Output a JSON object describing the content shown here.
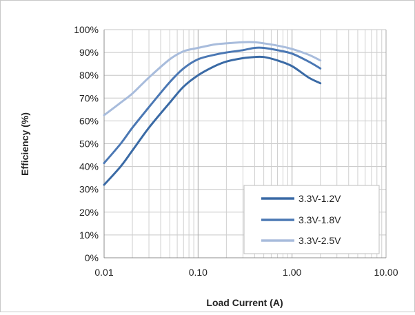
{
  "chart_data": {
    "type": "line",
    "xlabel": "Load Current (A)",
    "ylabel": "Efficiency (%)",
    "x_scale": "log",
    "xlim": [
      0.01,
      10
    ],
    "ylim": [
      0,
      100
    ],
    "x_ticks": [
      0.01,
      0.1,
      1,
      10
    ],
    "x_tick_labels": [
      "0.01",
      "0.10",
      "1.00",
      "10.00"
    ],
    "y_ticks": [
      0,
      10,
      20,
      30,
      40,
      50,
      60,
      70,
      80,
      90,
      100
    ],
    "y_tick_labels": [
      "0%",
      "10%",
      "20%",
      "30%",
      "40%",
      "50%",
      "60%",
      "70%",
      "80%",
      "90%",
      "100%"
    ],
    "grid": true,
    "legend_position": "bottom-right",
    "series": [
      {
        "name": "3.3V-1.2V",
        "color": "#3a6aa5",
        "x": [
          0.01,
          0.015,
          0.02,
          0.03,
          0.05,
          0.07,
          0.1,
          0.15,
          0.2,
          0.3,
          0.4,
          0.5,
          0.7,
          1,
          1.5,
          2
        ],
        "y": [
          32,
          40,
          47,
          57,
          68,
          75,
          80,
          84,
          86,
          87.5,
          88,
          88,
          86.5,
          84,
          79,
          76.5
        ]
      },
      {
        "name": "3.3V-1.8V",
        "color": "#4b78b4",
        "x": [
          0.01,
          0.015,
          0.02,
          0.03,
          0.05,
          0.07,
          0.1,
          0.15,
          0.2,
          0.3,
          0.4,
          0.5,
          0.7,
          1,
          1.5,
          2
        ],
        "y": [
          41.5,
          50,
          57,
          66,
          77,
          83,
          87,
          89,
          90,
          91,
          92,
          92,
          91,
          89.5,
          86,
          83
        ]
      },
      {
        "name": "3.3V-2.5V",
        "color": "#a8bcdc",
        "x": [
          0.01,
          0.015,
          0.02,
          0.03,
          0.05,
          0.07,
          0.1,
          0.15,
          0.2,
          0.3,
          0.4,
          0.5,
          0.7,
          1,
          1.5,
          2
        ],
        "y": [
          62.5,
          68,
          72,
          79,
          87,
          90.5,
          92,
          93.5,
          94,
          94.5,
          94.5,
          94,
          93,
          91.5,
          89,
          86.5
        ]
      }
    ]
  }
}
